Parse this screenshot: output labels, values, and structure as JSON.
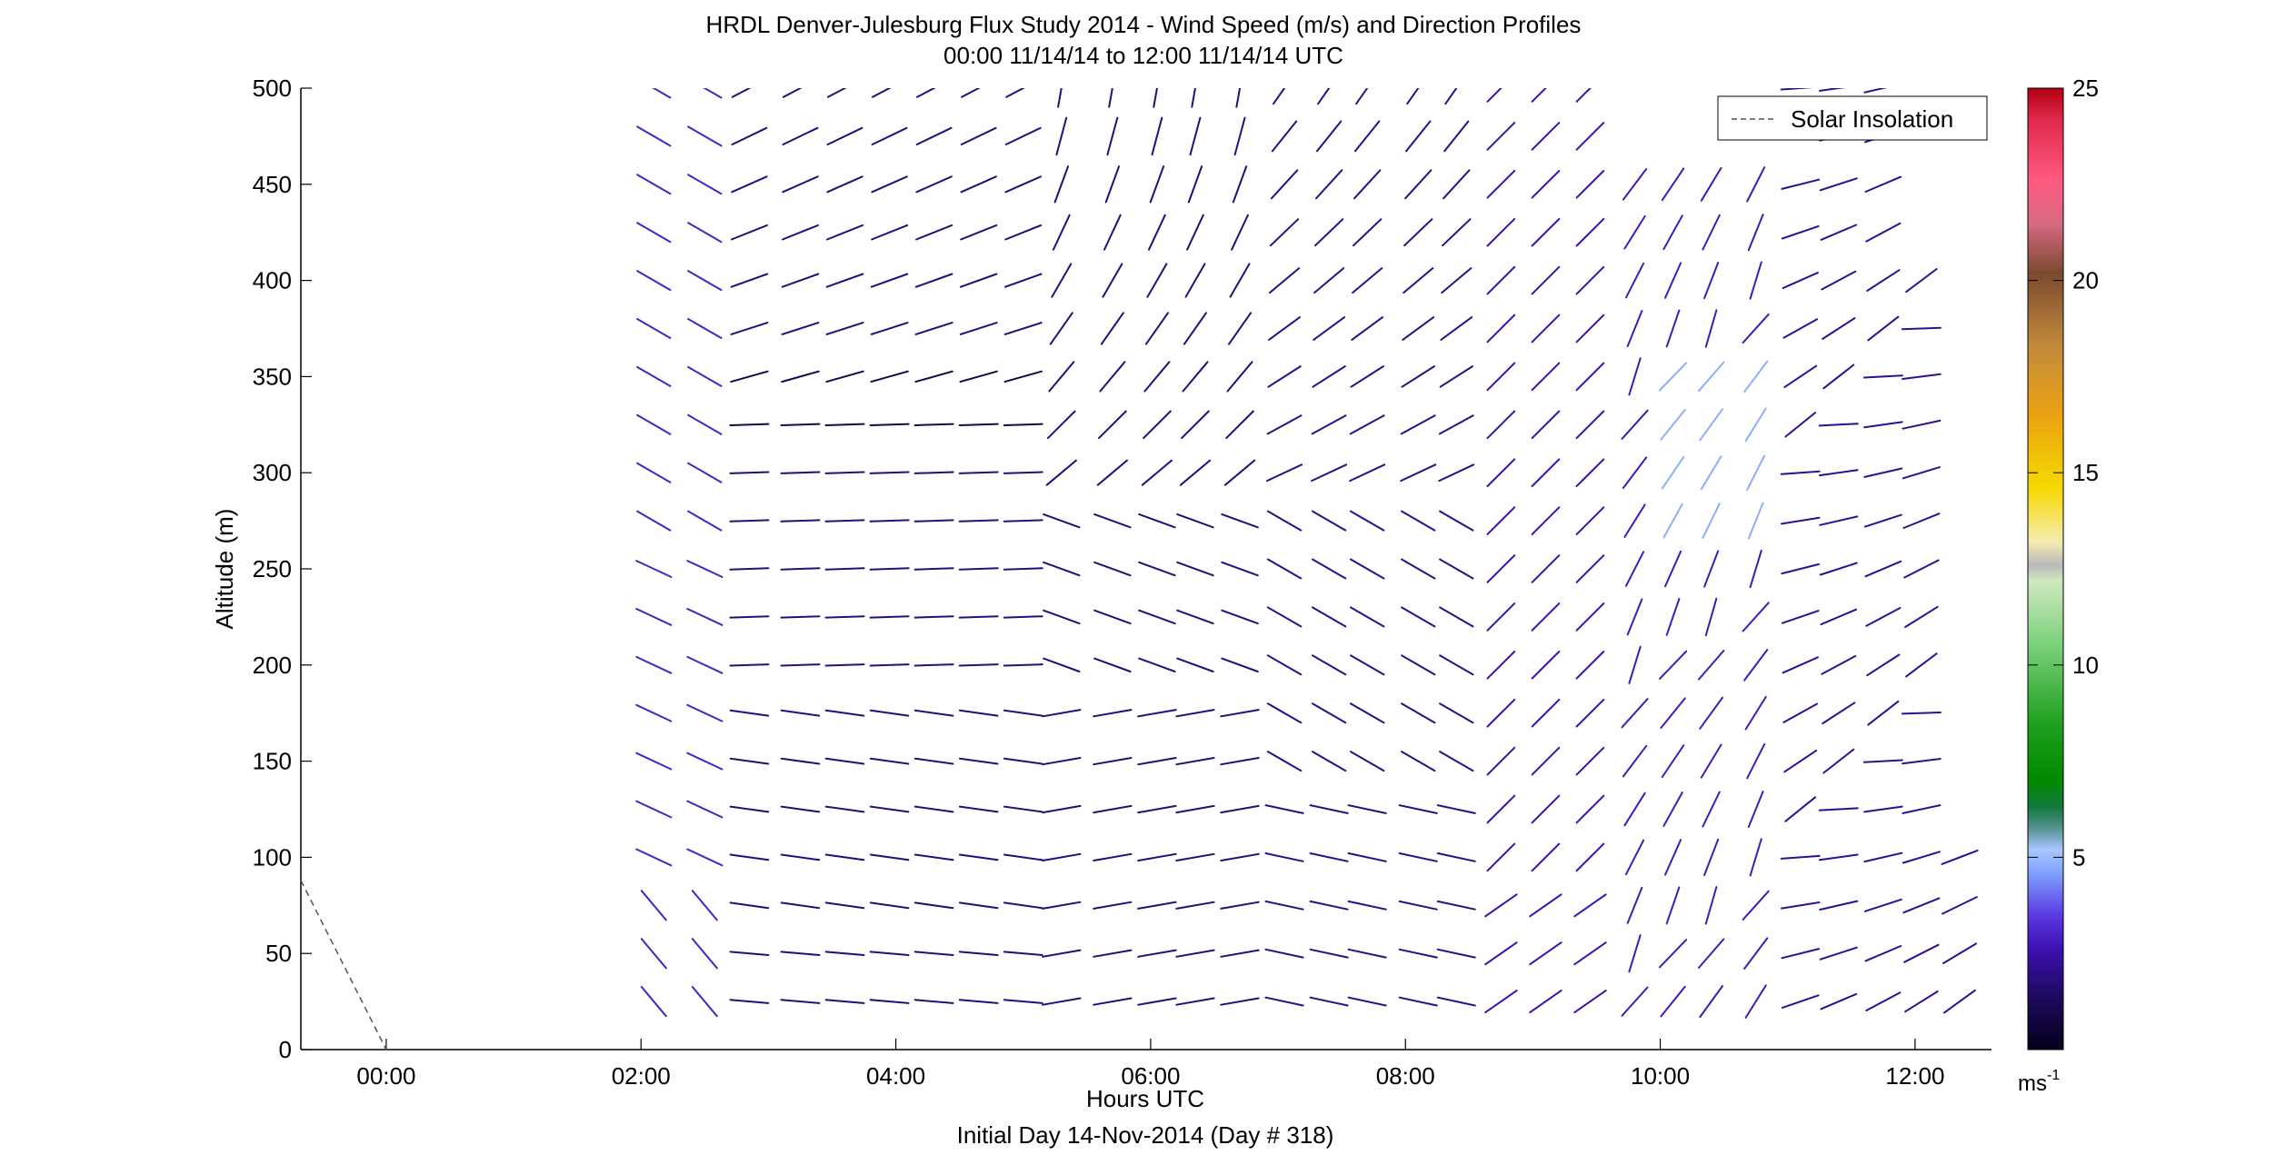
{
  "chart_data": {
    "type": "wind_barb_profile",
    "title": "HRDL Denver-Julesburg Flux Study 2014 - Wind Speed (m/s) and Direction Profiles",
    "subtitle": "00:00 11/14/14 to 12:00 11/14/14  UTC",
    "xlabel": "Hours UTC",
    "xlabel2": "Initial Day 14-Nov-2014 (Day # 318)",
    "ylabel": "Altitude (m)",
    "x_range_hours": [
      -0.67,
      12.6
    ],
    "ylim": [
      0,
      500
    ],
    "x_ticks": [
      {
        "value": 0,
        "label": "00:00"
      },
      {
        "value": 2,
        "label": "02:00"
      },
      {
        "value": 4,
        "label": "04:00"
      },
      {
        "value": 6,
        "label": "06:00"
      },
      {
        "value": 8,
        "label": "08:00"
      },
      {
        "value": 10,
        "label": "10:00"
      },
      {
        "value": 12,
        "label": "12:00"
      }
    ],
    "y_ticks": [
      {
        "value": 0,
        "label": "0"
      },
      {
        "value": 50,
        "label": "50"
      },
      {
        "value": 100,
        "label": "100"
      },
      {
        "value": 150,
        "label": "150"
      },
      {
        "value": 200,
        "label": "200"
      },
      {
        "value": 250,
        "label": "250"
      },
      {
        "value": 300,
        "label": "300"
      },
      {
        "value": 350,
        "label": "350"
      },
      {
        "value": 400,
        "label": "400"
      },
      {
        "value": 450,
        "label": "450"
      },
      {
        "value": 500,
        "label": "500"
      }
    ],
    "legend": {
      "label": "Solar Insolation",
      "position": "top-right"
    },
    "solar_insolation": {
      "x": [
        -0.67,
        0.0
      ],
      "y": [
        88,
        0
      ],
      "color": "#555555"
    },
    "colorbar": {
      "range": [
        0,
        25
      ],
      "ticks": [
        {
          "value": 5,
          "label": "5"
        },
        {
          "value": 10,
          "label": "10"
        },
        {
          "value": 15,
          "label": "15"
        },
        {
          "value": 20,
          "label": "20"
        },
        {
          "value": 25,
          "label": "25"
        }
      ],
      "unit_base": "ms",
      "unit_exp": "-1",
      "stops": [
        {
          "v": 0,
          "c": "#06001c"
        },
        {
          "v": 1.3,
          "c": "#1c0a5a"
        },
        {
          "v": 2.6,
          "c": "#3d0fb0"
        },
        {
          "v": 3.5,
          "c": "#5a3ae0"
        },
        {
          "v": 4.6,
          "c": "#7fa2ff"
        },
        {
          "v": 5.2,
          "c": "#a8c6ff"
        },
        {
          "v": 5.8,
          "c": "#4f8f88"
        },
        {
          "v": 6.3,
          "c": "#137a40"
        },
        {
          "v": 7.0,
          "c": "#008a00"
        },
        {
          "v": 8.5,
          "c": "#1fa01f"
        },
        {
          "v": 10.5,
          "c": "#7ad07a"
        },
        {
          "v": 12.2,
          "c": "#cfe8c0"
        },
        {
          "v": 12.6,
          "c": "#b9b9b9"
        },
        {
          "v": 13.2,
          "c": "#f5ebb0"
        },
        {
          "v": 14.6,
          "c": "#f5d900"
        },
        {
          "v": 16.5,
          "c": "#eaa212"
        },
        {
          "v": 18.3,
          "c": "#c28a3c"
        },
        {
          "v": 20.2,
          "c": "#7a4a30"
        },
        {
          "v": 21.5,
          "c": "#d96a84"
        },
        {
          "v": 22.6,
          "c": "#ff5a80"
        },
        {
          "v": 24.2,
          "c": "#e0284a"
        },
        {
          "v": 25,
          "c": "#b0000f"
        }
      ]
    },
    "wind_barbs": {
      "columns_hours": [
        2.1,
        2.5,
        2.85,
        3.25,
        3.6,
        3.95,
        4.3,
        4.65,
        5.0,
        5.3,
        5.7,
        6.05,
        6.35,
        6.7,
        7.05,
        7.4,
        7.7,
        8.1,
        8.4,
        8.75,
        9.1,
        9.45,
        9.8,
        10.1,
        10.4,
        10.75,
        11.1,
        11.4,
        11.75,
        12.05,
        12.35
      ],
      "altitudes_m": [
        25,
        50,
        75,
        100,
        125,
        150,
        175,
        200,
        225,
        250,
        275,
        300,
        325,
        350,
        375,
        400,
        425,
        450,
        475,
        500
      ],
      "speed_model_note": "values estimated visually",
      "lows": [
        {
          "t": 3.25,
          "z": 25,
          "s": 4.2,
          "d": 265
        },
        {
          "t": 6.05,
          "z": 250,
          "s": 4.0,
          "d": 275
        }
      ]
    }
  }
}
